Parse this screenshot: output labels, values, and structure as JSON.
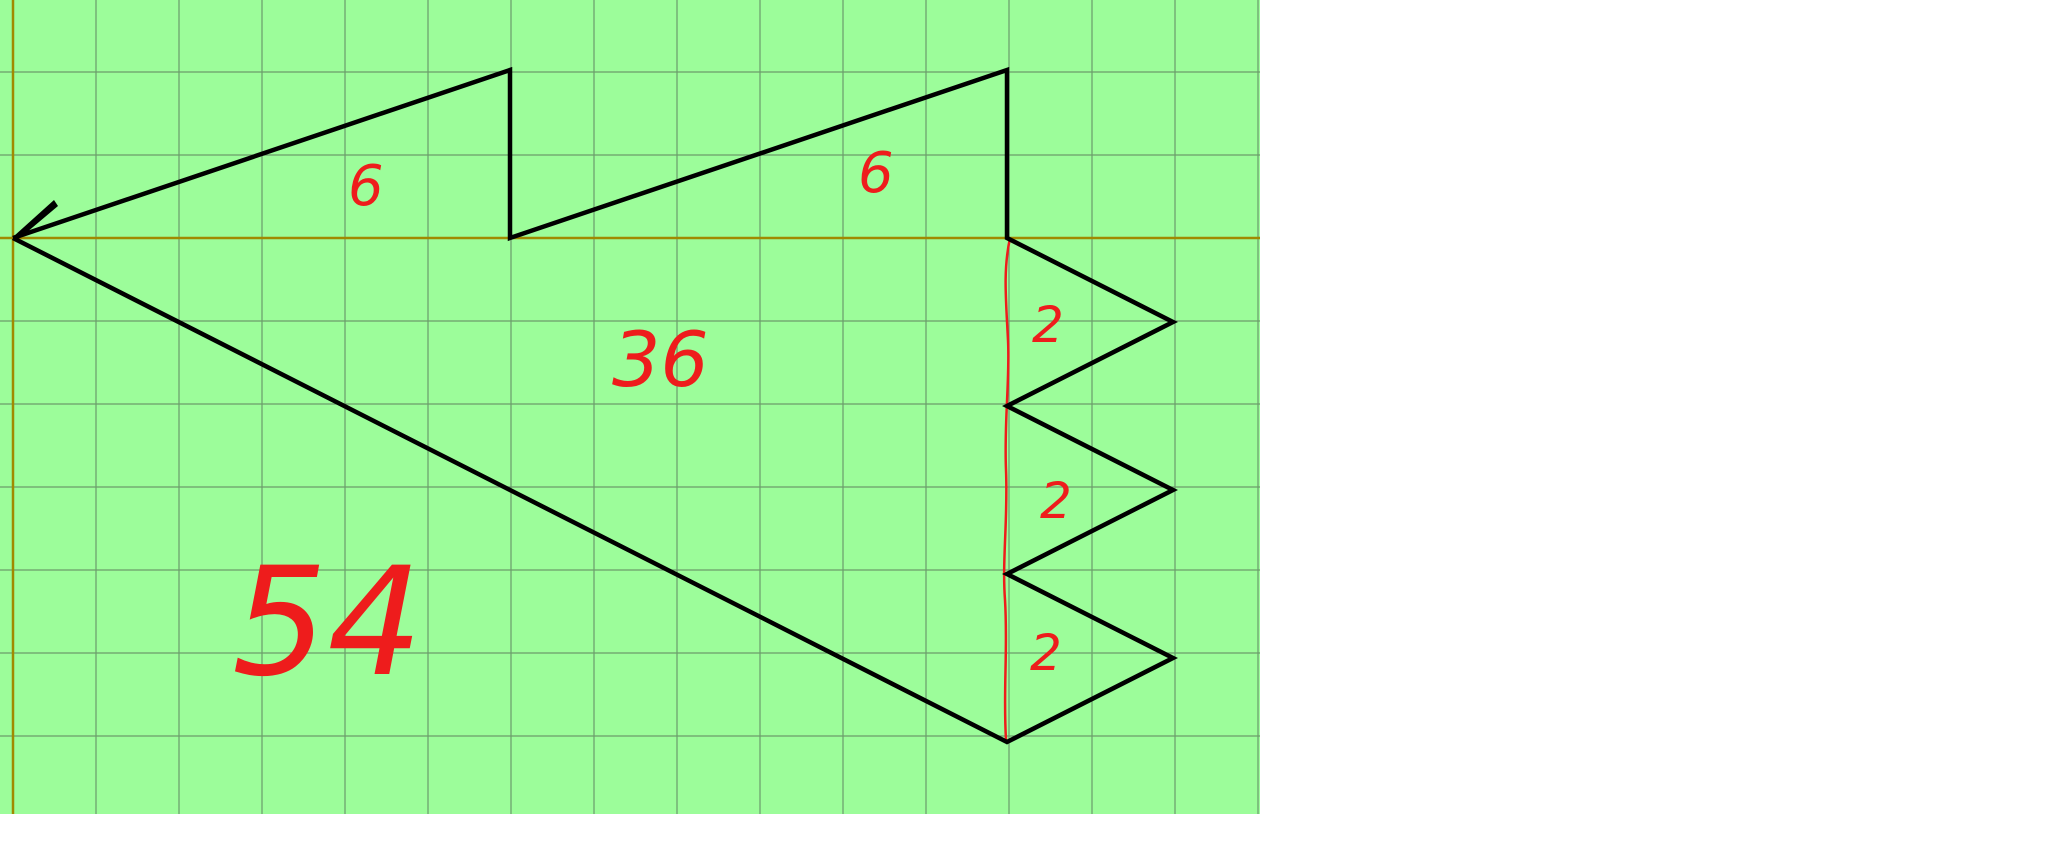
{
  "drawing": {
    "background_color": "#9cfd9a",
    "grid_color": "#6b9b6b",
    "axis_color": "#a08a00",
    "outline_color": "#000000",
    "annotation_color": "#ee1c1c"
  },
  "annotations": {
    "left_triangle_area": "6",
    "right_triangle_area": "6",
    "big_triangle_area": "36",
    "notch_1_area": "2",
    "notch_2_area": "2",
    "notch_3_area": "2",
    "total_area": "54"
  }
}
